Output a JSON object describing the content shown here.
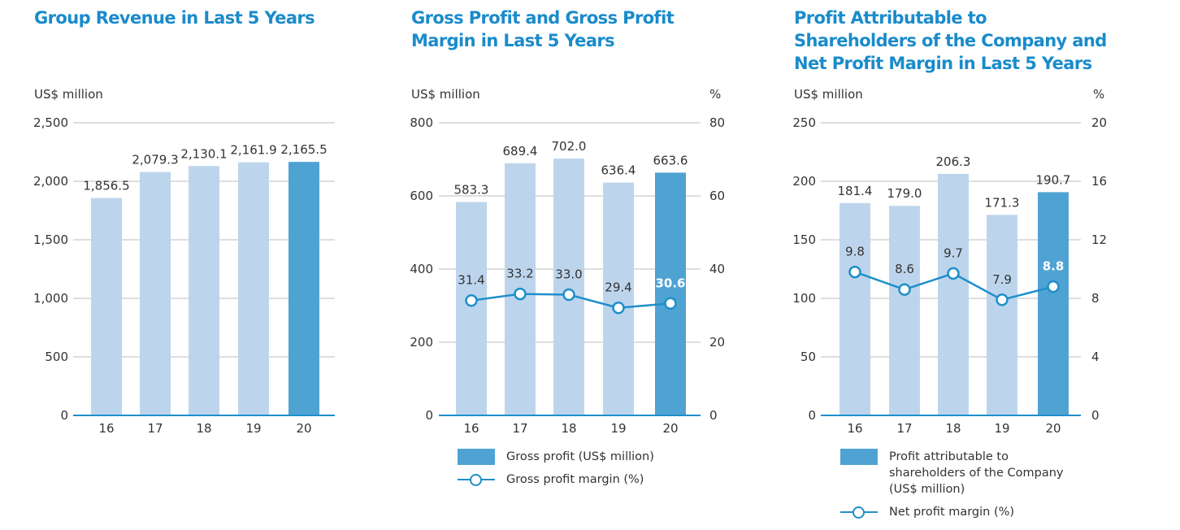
{
  "colors": {
    "bar": "#bdd5ec",
    "bar_highlight": "#4fa3d3",
    "line": "#1f8fcb",
    "title": "#1a8bcb",
    "grid": "#d3d3d3",
    "axis": "#1f8fcb"
  },
  "chart_data": [
    {
      "type": "bar",
      "title": "Group Revenue in Last 5 Years",
      "ylabel": "US$ million",
      "categories": [
        "16",
        "17",
        "18",
        "19",
        "20"
      ],
      "ylim": [
        0,
        2500
      ],
      "yticks": [
        {
          "v": 0,
          "label": "0"
        },
        {
          "v": 500,
          "label": "500"
        },
        {
          "v": 1000,
          "label": "1,000"
        },
        {
          "v": 1500,
          "label": "1,500"
        },
        {
          "v": 2000,
          "label": "2,000"
        },
        {
          "v": 2500,
          "label": "2,500"
        }
      ],
      "bars": {
        "values": [
          1856.5,
          2079.3,
          2130.1,
          2161.9,
          2165.5
        ],
        "labels": [
          "1,856.5",
          "2,079.3",
          "2,130.1",
          "2,161.9",
          "2,165.5"
        ],
        "highlight_index": 4
      },
      "grid": true
    },
    {
      "type": "bar+line",
      "title": "Gross Profit and Gross Profit Margin in Last 5 Years",
      "ylabel": "US$ million",
      "y2label": "%",
      "categories": [
        "16",
        "17",
        "18",
        "19",
        "20"
      ],
      "ylim": [
        0,
        800
      ],
      "y2lim": [
        0,
        80
      ],
      "yticks": [
        {
          "v": 0,
          "label": "0"
        },
        {
          "v": 200,
          "label": "200"
        },
        {
          "v": 400,
          "label": "400"
        },
        {
          "v": 600,
          "label": "600"
        },
        {
          "v": 800,
          "label": "800"
        }
      ],
      "y2ticks": [
        {
          "v": 0,
          "label": "0"
        },
        {
          "v": 20,
          "label": "20"
        },
        {
          "v": 40,
          "label": "40"
        },
        {
          "v": 60,
          "label": "60"
        },
        {
          "v": 80,
          "label": "80"
        }
      ],
      "bars": {
        "name": "Gross profit (US$ million)",
        "values": [
          583.3,
          689.4,
          702.0,
          636.4,
          663.6
        ],
        "labels": [
          "583.3",
          "689.4",
          "702.0",
          "636.4",
          "663.6"
        ],
        "highlight_index": 4
      },
      "line": {
        "name": "Gross profit margin (%)",
        "values": [
          31.4,
          33.2,
          33.0,
          29.4,
          30.6
        ],
        "labels": [
          "31.4",
          "33.2",
          "33.0",
          "29.4",
          "30.6"
        ]
      },
      "grid": true,
      "legend": "bottom"
    },
    {
      "type": "bar+line",
      "title": "Profit Attributable to Shareholders of the Company and Net Profit Margin in Last 5 Years",
      "ylabel": "US$ million",
      "y2label": "%",
      "categories": [
        "16",
        "17",
        "18",
        "19",
        "20"
      ],
      "ylim": [
        0,
        250
      ],
      "y2lim": [
        0,
        20
      ],
      "yticks": [
        {
          "v": 0,
          "label": "0"
        },
        {
          "v": 50,
          "label": "50"
        },
        {
          "v": 100,
          "label": "100"
        },
        {
          "v": 150,
          "label": "150"
        },
        {
          "v": 200,
          "label": "200"
        },
        {
          "v": 250,
          "label": "250"
        }
      ],
      "y2ticks": [
        {
          "v": 0,
          "label": "0"
        },
        {
          "v": 4,
          "label": "4"
        },
        {
          "v": 8,
          "label": "8"
        },
        {
          "v": 12,
          "label": "12"
        },
        {
          "v": 16,
          "label": "16"
        },
        {
          "v": 20,
          "label": "20"
        }
      ],
      "bars": {
        "name": "Profit attributable to shareholders of the Company (US$ million)",
        "values": [
          181.4,
          179.0,
          206.3,
          171.3,
          190.7
        ],
        "labels": [
          "181.4",
          "179.0",
          "206.3",
          "171.3",
          "190.7"
        ],
        "highlight_index": 4
      },
      "line": {
        "name": "Net profit margin (%)",
        "values": [
          9.8,
          8.6,
          9.7,
          7.9,
          8.8
        ],
        "labels": [
          "9.8",
          "8.6",
          "9.7",
          "7.9",
          "8.8"
        ]
      },
      "grid": true,
      "legend": "bottom"
    }
  ]
}
